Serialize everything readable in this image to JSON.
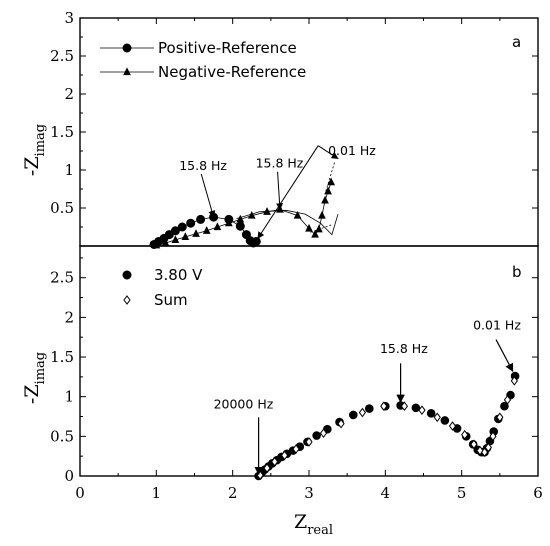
{
  "chart_data": [
    {
      "panel_label": "a",
      "type": "line",
      "xlabel": "",
      "ylabel": "-Z",
      "ylabel_sub": "imag",
      "xlim": [
        0,
        6
      ],
      "ylim": [
        0,
        3
      ],
      "y_ticks": [
        "0.5",
        "1",
        "1.5",
        "2",
        "2.5",
        "3"
      ],
      "grid": false,
      "legend_position": "top-left",
      "series": [
        {
          "name": "Positive-Reference",
          "marker": "circle",
          "x": [
            0.97,
            1.03,
            1.1,
            1.17,
            1.25,
            1.34,
            1.45,
            1.58,
            1.75,
            1.95,
            2.1,
            2.18,
            2.23,
            2.27,
            2.31
          ],
          "y": [
            0.02,
            0.06,
            0.1,
            0.15,
            0.2,
            0.25,
            0.3,
            0.35,
            0.38,
            0.35,
            0.26,
            0.15,
            0.07,
            0.04,
            0.06
          ]
        },
        {
          "name": "Negative-Reference",
          "marker": "triangle",
          "x": [
            1.0,
            1.12,
            1.25,
            1.38,
            1.52,
            1.66,
            1.8,
            1.95,
            2.1,
            2.25,
            2.45,
            2.62,
            2.85,
            3.0,
            3.08,
            3.13,
            3.17,
            3.21,
            3.25,
            3.29
          ],
          "y": [
            0.01,
            0.04,
            0.08,
            0.12,
            0.16,
            0.2,
            0.25,
            0.3,
            0.35,
            0.4,
            0.45,
            0.48,
            0.4,
            0.23,
            0.15,
            0.22,
            0.4,
            0.6,
            0.72,
            0.84
          ]
        }
      ],
      "connecting_curve": {
        "x": [
          2.05,
          2.35,
          2.7,
          2.95,
          3.15,
          3.3,
          3.38
        ],
        "y": [
          0.36,
          0.45,
          0.47,
          0.42,
          0.3,
          0.15,
          0.42
        ]
      },
      "dashed_segments": [
        [
          [
            3.22,
            0.72
          ],
          [
            3.34,
            1.12
          ]
        ],
        [
          [
            3.02,
            0.18
          ],
          [
            3.3,
            0.28
          ]
        ]
      ],
      "annotations": [
        {
          "text": "15.8 Hz",
          "text_x": 1.3,
          "text_y": 1.0,
          "arrow_to": [
            1.75,
            0.38
          ]
        },
        {
          "text": "15.8 Hz",
          "text_x": 2.3,
          "text_y": 1.03,
          "arrow_to": [
            2.62,
            0.48
          ]
        },
        {
          "text": "0.01 Hz",
          "text_x": 3.25,
          "text_y": 1.2,
          "arrow_from": [
            3.12,
            1.32
          ],
          "arrow_to": [
            2.33,
            0.1
          ]
        },
        {
          "text": "",
          "arrow_from": [
            3.12,
            1.32
          ],
          "arrow_to": [
            3.38,
            1.15
          ]
        }
      ]
    },
    {
      "panel_label": "b",
      "type": "scatter",
      "xlabel": "Z",
      "xlabel_sub": "real",
      "ylabel": "-Z",
      "ylabel_sub": "imag",
      "xlim": [
        0,
        6
      ],
      "ylim": [
        0,
        2.9
      ],
      "x_ticks": [
        "0",
        "1",
        "2",
        "3",
        "4",
        "5",
        "6"
      ],
      "y_ticks": [
        "0",
        "0.5",
        "1",
        "1.5",
        "2",
        "2.5"
      ],
      "grid": false,
      "legend_position": "top-left",
      "series": [
        {
          "name": "3.80 V",
          "marker": "filled-circle",
          "x": [
            2.34,
            2.38,
            2.42,
            2.47,
            2.52,
            2.58,
            2.64,
            2.71,
            2.79,
            2.88,
            2.98,
            3.1,
            3.24,
            3.4,
            3.58,
            3.79,
            4.0,
            4.2,
            4.4,
            4.6,
            4.78,
            4.94,
            5.06,
            5.15,
            5.21,
            5.26,
            5.3,
            5.33,
            5.37,
            5.42,
            5.48,
            5.56,
            5.64,
            5.7
          ],
          "y": [
            0.0,
            0.04,
            0.08,
            0.12,
            0.16,
            0.2,
            0.24,
            0.28,
            0.32,
            0.37,
            0.43,
            0.51,
            0.59,
            0.68,
            0.77,
            0.85,
            0.88,
            0.89,
            0.86,
            0.79,
            0.7,
            0.6,
            0.5,
            0.4,
            0.33,
            0.3,
            0.3,
            0.35,
            0.44,
            0.56,
            0.72,
            0.88,
            1.02,
            1.26
          ]
        },
        {
          "name": "Sum",
          "marker": "open-diamond",
          "x": [
            2.36,
            2.45,
            2.55,
            2.68,
            2.83,
            3.0,
            3.19,
            3.42,
            3.7,
            3.98,
            4.25,
            4.48,
            4.68,
            4.88,
            5.04,
            5.16,
            5.24,
            5.3,
            5.35,
            5.41,
            5.5,
            5.6,
            5.69
          ],
          "y": [
            0.01,
            0.1,
            0.18,
            0.26,
            0.34,
            0.43,
            0.54,
            0.66,
            0.8,
            0.88,
            0.88,
            0.83,
            0.74,
            0.63,
            0.52,
            0.4,
            0.32,
            0.3,
            0.36,
            0.5,
            0.74,
            0.96,
            1.2
          ]
        }
      ],
      "annotations": [
        {
          "text": "20000 Hz",
          "text_x": 1.75,
          "text_y": 0.85,
          "arrow_from": [
            2.34,
            0.74
          ],
          "arrow_to": [
            2.34,
            0.02
          ]
        },
        {
          "text": "15.8 Hz",
          "text_x": 3.93,
          "text_y": 1.55,
          "arrow_from": [
            4.2,
            1.42
          ],
          "arrow_to": [
            4.2,
            0.93
          ]
        },
        {
          "text": "0.01 Hz",
          "text_x": 5.15,
          "text_y": 1.85,
          "arrow_from": [
            5.45,
            1.72
          ],
          "arrow_to": [
            5.67,
            1.32
          ]
        }
      ]
    }
  ]
}
